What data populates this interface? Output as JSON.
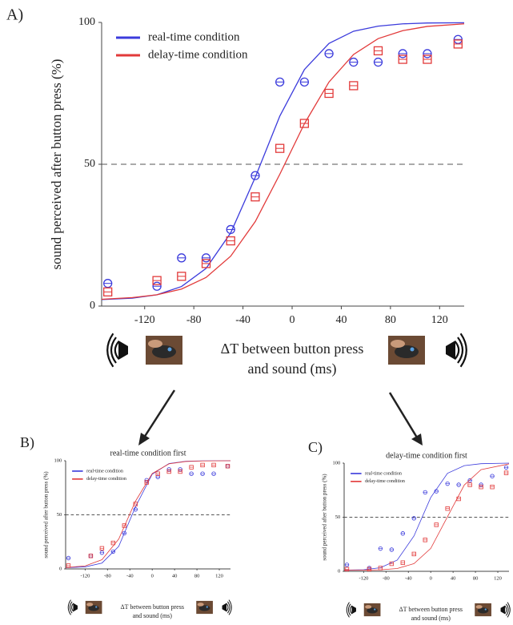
{
  "chart_data": [
    {
      "type": "scatter",
      "panel_label": "A)",
      "y_label": "sound perceived after button press (%)",
      "x_label": [
        "ΔT between button press",
        "and sound (ms)"
      ],
      "xlim": [
        -155,
        140
      ],
      "ylim": [
        0,
        100
      ],
      "xticks": [
        -120,
        -80,
        -40,
        0,
        40,
        80,
        120
      ],
      "yticks": [
        0,
        50,
        100
      ],
      "reference_line": 50,
      "legend": "upper left",
      "x": [
        -150,
        -110,
        -90,
        -70,
        -50,
        -30,
        -10,
        10,
        30,
        50,
        70,
        90,
        110,
        135
      ],
      "fit_x": [
        -155,
        -130,
        -110,
        -90,
        -70,
        -50,
        -30,
        -10,
        10,
        30,
        50,
        70,
        90,
        110,
        140
      ],
      "series": [
        {
          "name": "real-time condition",
          "color": "#3b3bdc",
          "marker": "circle",
          "values": [
            8,
            7,
            17,
            17,
            27,
            46,
            79,
            79,
            89,
            86,
            86,
            89,
            89,
            94
          ],
          "fit_values": [
            2.3,
            2.8,
            4.0,
            6.9,
            13.3,
            25.8,
            45.4,
            67.0,
            83.4,
            92.6,
            96.9,
            98.7,
            99.5,
            99.8,
            99.9
          ]
        },
        {
          "name": "delay-time condition",
          "color": "#e23a3a",
          "marker": "square",
          "values": [
            5,
            9,
            10.5,
            15,
            23,
            38.5,
            55.6,
            64.4,
            75,
            77.7,
            90,
            87,
            87,
            92.4
          ],
          "fit_values": [
            2.4,
            3.0,
            4.0,
            6.0,
            10.1,
            17.6,
            29.8,
            46.5,
            64.3,
            79.0,
            88.7,
            94.3,
            97.1,
            98.6,
            99.5
          ]
        }
      ]
    },
    {
      "type": "scatter",
      "panel_label": "B)",
      "title": "real-time condition first",
      "y_label": "sound perceived after button press (%)",
      "x_label": [
        "ΔT between button press",
        "and sound (ms)"
      ],
      "xlim": [
        -155,
        140
      ],
      "ylim": [
        0,
        100
      ],
      "xticks": [
        -120,
        -80,
        -40,
        0,
        40,
        80,
        120
      ],
      "yticks": [
        0,
        50,
        100
      ],
      "reference_line": 50,
      "legend": "upper left",
      "x": [
        -150,
        -110,
        -90,
        -70,
        -50,
        -30,
        -10,
        10,
        30,
        50,
        70,
        90,
        110,
        135
      ],
      "fit_x": [
        -155,
        -120,
        -90,
        -60,
        -30,
        0,
        30,
        60,
        90,
        140
      ],
      "series": [
        {
          "name": "real-time condition",
          "color": "#3b3bdc",
          "marker": "circle",
          "values": [
            10,
            12,
            15,
            16,
            33,
            55,
            82,
            85,
            92,
            92,
            88,
            88,
            88,
            95
          ],
          "fit_values": [
            1.1,
            1.9,
            5.4,
            20.8,
            57.4,
            87.6,
            97.4,
            99.5,
            99.9,
            100
          ]
        },
        {
          "name": "delay-time condition",
          "color": "#e23a3a",
          "marker": "square",
          "values": [
            3,
            12,
            19,
            24,
            40,
            60,
            80,
            88,
            90,
            90,
            94,
            96,
            96,
            95
          ],
          "fit_values": [
            1.3,
            2.8,
            8.5,
            27.6,
            62.6,
            88.2,
            97.1,
            99.3,
            99.8,
            100
          ]
        }
      ]
    },
    {
      "type": "scatter",
      "panel_label": "C)",
      "title": "delay-time condition first",
      "y_label": "sound perceived after button press (%)",
      "x_label": [
        "ΔT between button press",
        "and sound (ms)"
      ],
      "xlim": [
        -155,
        140
      ],
      "ylim": [
        0,
        100
      ],
      "xticks": [
        -120,
        -80,
        -40,
        0,
        40,
        80,
        120
      ],
      "yticks": [
        0,
        50,
        100
      ],
      "reference_line": 50,
      "legend": "upper left",
      "x": [
        -150,
        -110,
        -90,
        -70,
        -50,
        -30,
        -10,
        10,
        30,
        50,
        70,
        90,
        110,
        135
      ],
      "fit_x": [
        -155,
        -120,
        -90,
        -60,
        -30,
        0,
        30,
        60,
        90,
        140
      ],
      "series": [
        {
          "name": "real-time condition",
          "color": "#3b3bdc",
          "marker": "circle",
          "values": [
            6,
            3,
            21,
            20,
            35,
            49,
            73,
            74,
            81,
            80,
            84,
            80,
            88,
            96
          ],
          "fit_values": [
            1.1,
            1.5,
            3.3,
            10.4,
            32.7,
            68.3,
            90.6,
            97.7,
            99.5,
            100
          ]
        },
        {
          "name": "delay-time condition",
          "color": "#e23a3a",
          "marker": "square",
          "values": [
            2,
            2,
            3,
            7,
            8,
            16,
            29,
            43,
            58,
            67,
            80,
            78,
            78,
            91
          ],
          "fit_values": [
            1.0,
            1.1,
            1.4,
            2.6,
            7.1,
            21.2,
            50.5,
            79.8,
            94.0,
            99.3
          ]
        }
      ]
    }
  ]
}
